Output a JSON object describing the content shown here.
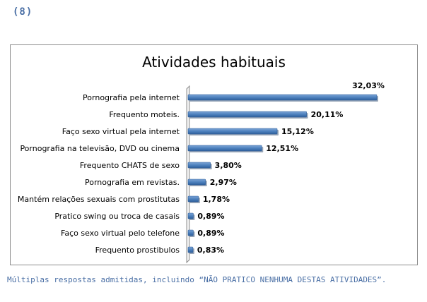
{
  "page_number": "(8)",
  "footnote": "Múltiplas respostas admitidas, incluindo “NÃO PRATICO NENHUMA DESTAS ATIVIDADES”.",
  "chart_data": {
    "type": "bar",
    "orientation": "horizontal",
    "title": "Atividades habituais",
    "categories": [
      "Pornografia pela internet",
      "Frequento moteis.",
      "Faço sexo virtual pela internet",
      "Pornografia na televisão, DVD ou cinema",
      "Frequento CHATS de sexo",
      "Pornografia em revistas.",
      "Mantém relações sexuais com prostitutas",
      "Pratico swing ou troca de casais",
      "Faço sexo virtual pelo telefone",
      "Frequento prostibulos"
    ],
    "values": [
      32.03,
      20.11,
      15.12,
      12.51,
      3.8,
      2.97,
      1.78,
      0.89,
      0.89,
      0.83
    ],
    "value_labels": [
      "32,03%",
      "20,11%",
      "15,12%",
      "12,51%",
      "3,80%",
      "2,97%",
      "1,78%",
      "0,89%",
      "0,89%",
      "0,83%"
    ],
    "xlim": [
      0,
      35
    ],
    "grid": false,
    "legend": "none",
    "colors": {
      "bar": "#4a7ebb",
      "bar_dark": "#2f5f9a",
      "bar_light": "#7ba4d6"
    }
  }
}
